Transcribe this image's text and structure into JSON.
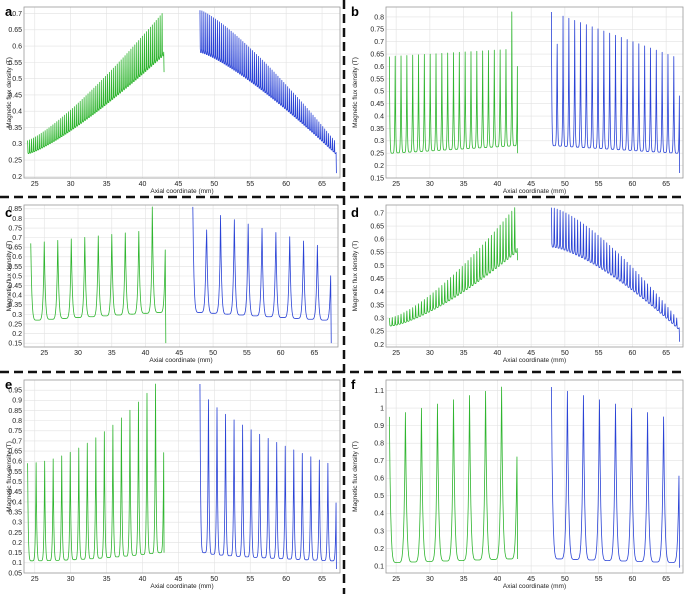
{
  "colors": {
    "green": "#2fb52f",
    "blue": "#2a43d6"
  },
  "chart_data": [
    {
      "panel": "a",
      "type": "line",
      "xlabel": "Axial coordinate (mm)",
      "ylabel": "Magnetic flux density  (T)",
      "xlim": [
        23.5,
        67.5
      ],
      "ylim": [
        0.195,
        0.72
      ],
      "xticks": [
        25,
        30,
        35,
        40,
        45,
        50,
        55,
        60,
        65
      ],
      "yticks": [
        0.2,
        0.25,
        0.3,
        0.35,
        0.4,
        0.45,
        0.5,
        0.55,
        0.6,
        0.65,
        0.7
      ],
      "series": [
        {
          "color": "green",
          "x_range": [
            24,
            43
          ],
          "n_peaks": 70,
          "start_peak": 0.31,
          "end_peak": 0.7,
          "start_valley": 0.27,
          "end_valley": 0.57,
          "exponent": 1.25,
          "terminal_value": 0.52
        },
        {
          "color": "blue",
          "x_range": [
            48,
            67
          ],
          "n_peaks": 70,
          "start_peak": 0.71,
          "end_peak": 0.31,
          "start_valley": 0.58,
          "end_valley": 0.27,
          "exponent": 1.25,
          "terminal_value": 0.21
        }
      ]
    },
    {
      "panel": "b",
      "type": "line",
      "xlabel": "Axial coordinate (mm)",
      "ylabel": "Magnetic flux density  (T)",
      "xlim": [
        23.5,
        67.5
      ],
      "ylim": [
        0.15,
        0.84
      ],
      "xticks": [
        25,
        30,
        35,
        40,
        45,
        50,
        55,
        60,
        65
      ],
      "yticks": [
        0.15,
        0.2,
        0.25,
        0.3,
        0.35,
        0.4,
        0.45,
        0.5,
        0.55,
        0.6,
        0.65,
        0.7,
        0.75,
        0.8
      ],
      "series": [
        {
          "color": "green",
          "x_range": [
            24,
            43
          ],
          "n_peaks": 22,
          "start_peak": 0.64,
          "end_peak": 0.67,
          "start_valley": 0.25,
          "end_valley": 0.28,
          "exponent": 1,
          "last_peak": 0.82,
          "terminal_value": 0.25
        },
        {
          "color": "blue",
          "x_range": [
            48,
            67
          ],
          "n_peaks": 22,
          "start_peak": 0.82,
          "end_peak": 0.64,
          "start_valley": 0.28,
          "end_valley": 0.25,
          "exponent": 1,
          "first_peak": 0.82,
          "second_peak": 0.69,
          "terminal_value": 0.17
        }
      ]
    },
    {
      "panel": "c",
      "type": "line",
      "xlabel": "Axial coordinate (mm)",
      "ylabel": "Magnetic flux density  (T)",
      "xlim": [
        22,
        68.5
      ],
      "ylim": [
        0.13,
        0.87
      ],
      "xticks": [
        25,
        30,
        35,
        40,
        45,
        50,
        55,
        60,
        65
      ],
      "yticks": [
        0.15,
        0.2,
        0.25,
        0.3,
        0.35,
        0.4,
        0.45,
        0.5,
        0.55,
        0.6,
        0.65,
        0.7,
        0.75,
        0.8,
        0.85
      ],
      "series": [
        {
          "color": "green",
          "x_range": [
            23,
            43
          ],
          "n_peaks": 10,
          "start_peak": 0.67,
          "end_peak": 0.74,
          "start_valley": 0.27,
          "end_valley": 0.31,
          "exponent": 1,
          "last_peak": 0.86,
          "terminal_value": 0.15
        },
        {
          "color": "blue",
          "x_range": [
            47,
            67.5
          ],
          "n_peaks": 10,
          "start_peak": 0.86,
          "end_peak": 0.66,
          "start_valley": 0.31,
          "end_valley": 0.27,
          "exponent": 1,
          "first_peak": 0.86,
          "second_peak": 0.74,
          "terminal_value": 0.15
        }
      ]
    },
    {
      "panel": "d",
      "type": "line",
      "xlabel": "Axial coordinate (mm)",
      "ylabel": "Magnetic flux density  (T)",
      "xlim": [
        23.5,
        67.5
      ],
      "ylim": [
        0.19,
        0.73
      ],
      "xticks": [
        25,
        30,
        35,
        40,
        45,
        50,
        55,
        60,
        65
      ],
      "yticks": [
        0.2,
        0.25,
        0.3,
        0.35,
        0.4,
        0.45,
        0.5,
        0.55,
        0.6,
        0.65,
        0.7
      ],
      "series": [
        {
          "color": "green",
          "x_range": [
            24,
            43
          ],
          "n_peaks": 44,
          "start_peak": 0.3,
          "end_peak": 0.72,
          "start_valley": 0.27,
          "end_valley": 0.55,
          "exponent": 1.4,
          "terminal_value": 0.52
        },
        {
          "color": "blue",
          "x_range": [
            48,
            67
          ],
          "n_peaks": 44,
          "start_peak": 0.72,
          "end_peak": 0.3,
          "start_valley": 0.57,
          "end_valley": 0.26,
          "exponent": 1.4,
          "terminal_value": 0.21
        }
      ]
    },
    {
      "panel": "e",
      "type": "line",
      "xlabel": "Axial coordinate (mm)",
      "ylabel": "Magnetic flux density  (T)",
      "xlim": [
        23.5,
        67.5
      ],
      "ylim": [
        0.05,
        1.0
      ],
      "xticks": [
        25,
        30,
        35,
        40,
        45,
        50,
        55,
        60,
        65
      ],
      "yticks": [
        0.05,
        0.1,
        0.15,
        0.2,
        0.25,
        0.3,
        0.35,
        0.4,
        0.45,
        0.5,
        0.55,
        0.6,
        0.65,
        0.7,
        0.75,
        0.8,
        0.85,
        0.9,
        0.95
      ],
      "series": [
        {
          "color": "green",
          "x_range": [
            24,
            43
          ],
          "n_peaks": 16,
          "start_peak": 0.59,
          "end_peak": 0.98,
          "start_valley": 0.11,
          "end_valley": 0.15,
          "exponent": 1.8,
          "terminal_value": 0.15
        },
        {
          "color": "blue",
          "x_range": [
            48,
            67
          ],
          "n_peaks": 16,
          "start_peak": 0.98,
          "end_peak": 0.59,
          "start_valley": 0.15,
          "end_valley": 0.11,
          "exponent": 0.6,
          "terminal_value": 0.07
        }
      ]
    },
    {
      "panel": "f",
      "type": "line",
      "xlabel": "Axial coordinate (mm)",
      "ylabel": "Magnetic flux density  (T)",
      "xlim": [
        23.5,
        67.5
      ],
      "ylim": [
        0.06,
        1.16
      ],
      "xticks": [
        25,
        30,
        35,
        40,
        45,
        50,
        55,
        60,
        65
      ],
      "yticks": [
        0.1,
        0.2,
        0.3,
        0.4,
        0.5,
        0.6,
        0.7,
        0.8,
        0.9,
        1,
        1.1
      ],
      "series": [
        {
          "color": "green",
          "x_range": [
            24,
            43
          ],
          "n_peaks": 8,
          "start_peak": 0.95,
          "end_peak": 1.12,
          "start_valley": 0.12,
          "end_valley": 0.14,
          "exponent": 1,
          "terminal_value": 0.14
        },
        {
          "color": "blue",
          "x_range": [
            48,
            67
          ],
          "n_peaks": 8,
          "start_peak": 1.12,
          "end_peak": 0.95,
          "start_valley": 0.14,
          "end_valley": 0.12,
          "exponent": 1,
          "terminal_value": 0.09
        }
      ]
    }
  ]
}
